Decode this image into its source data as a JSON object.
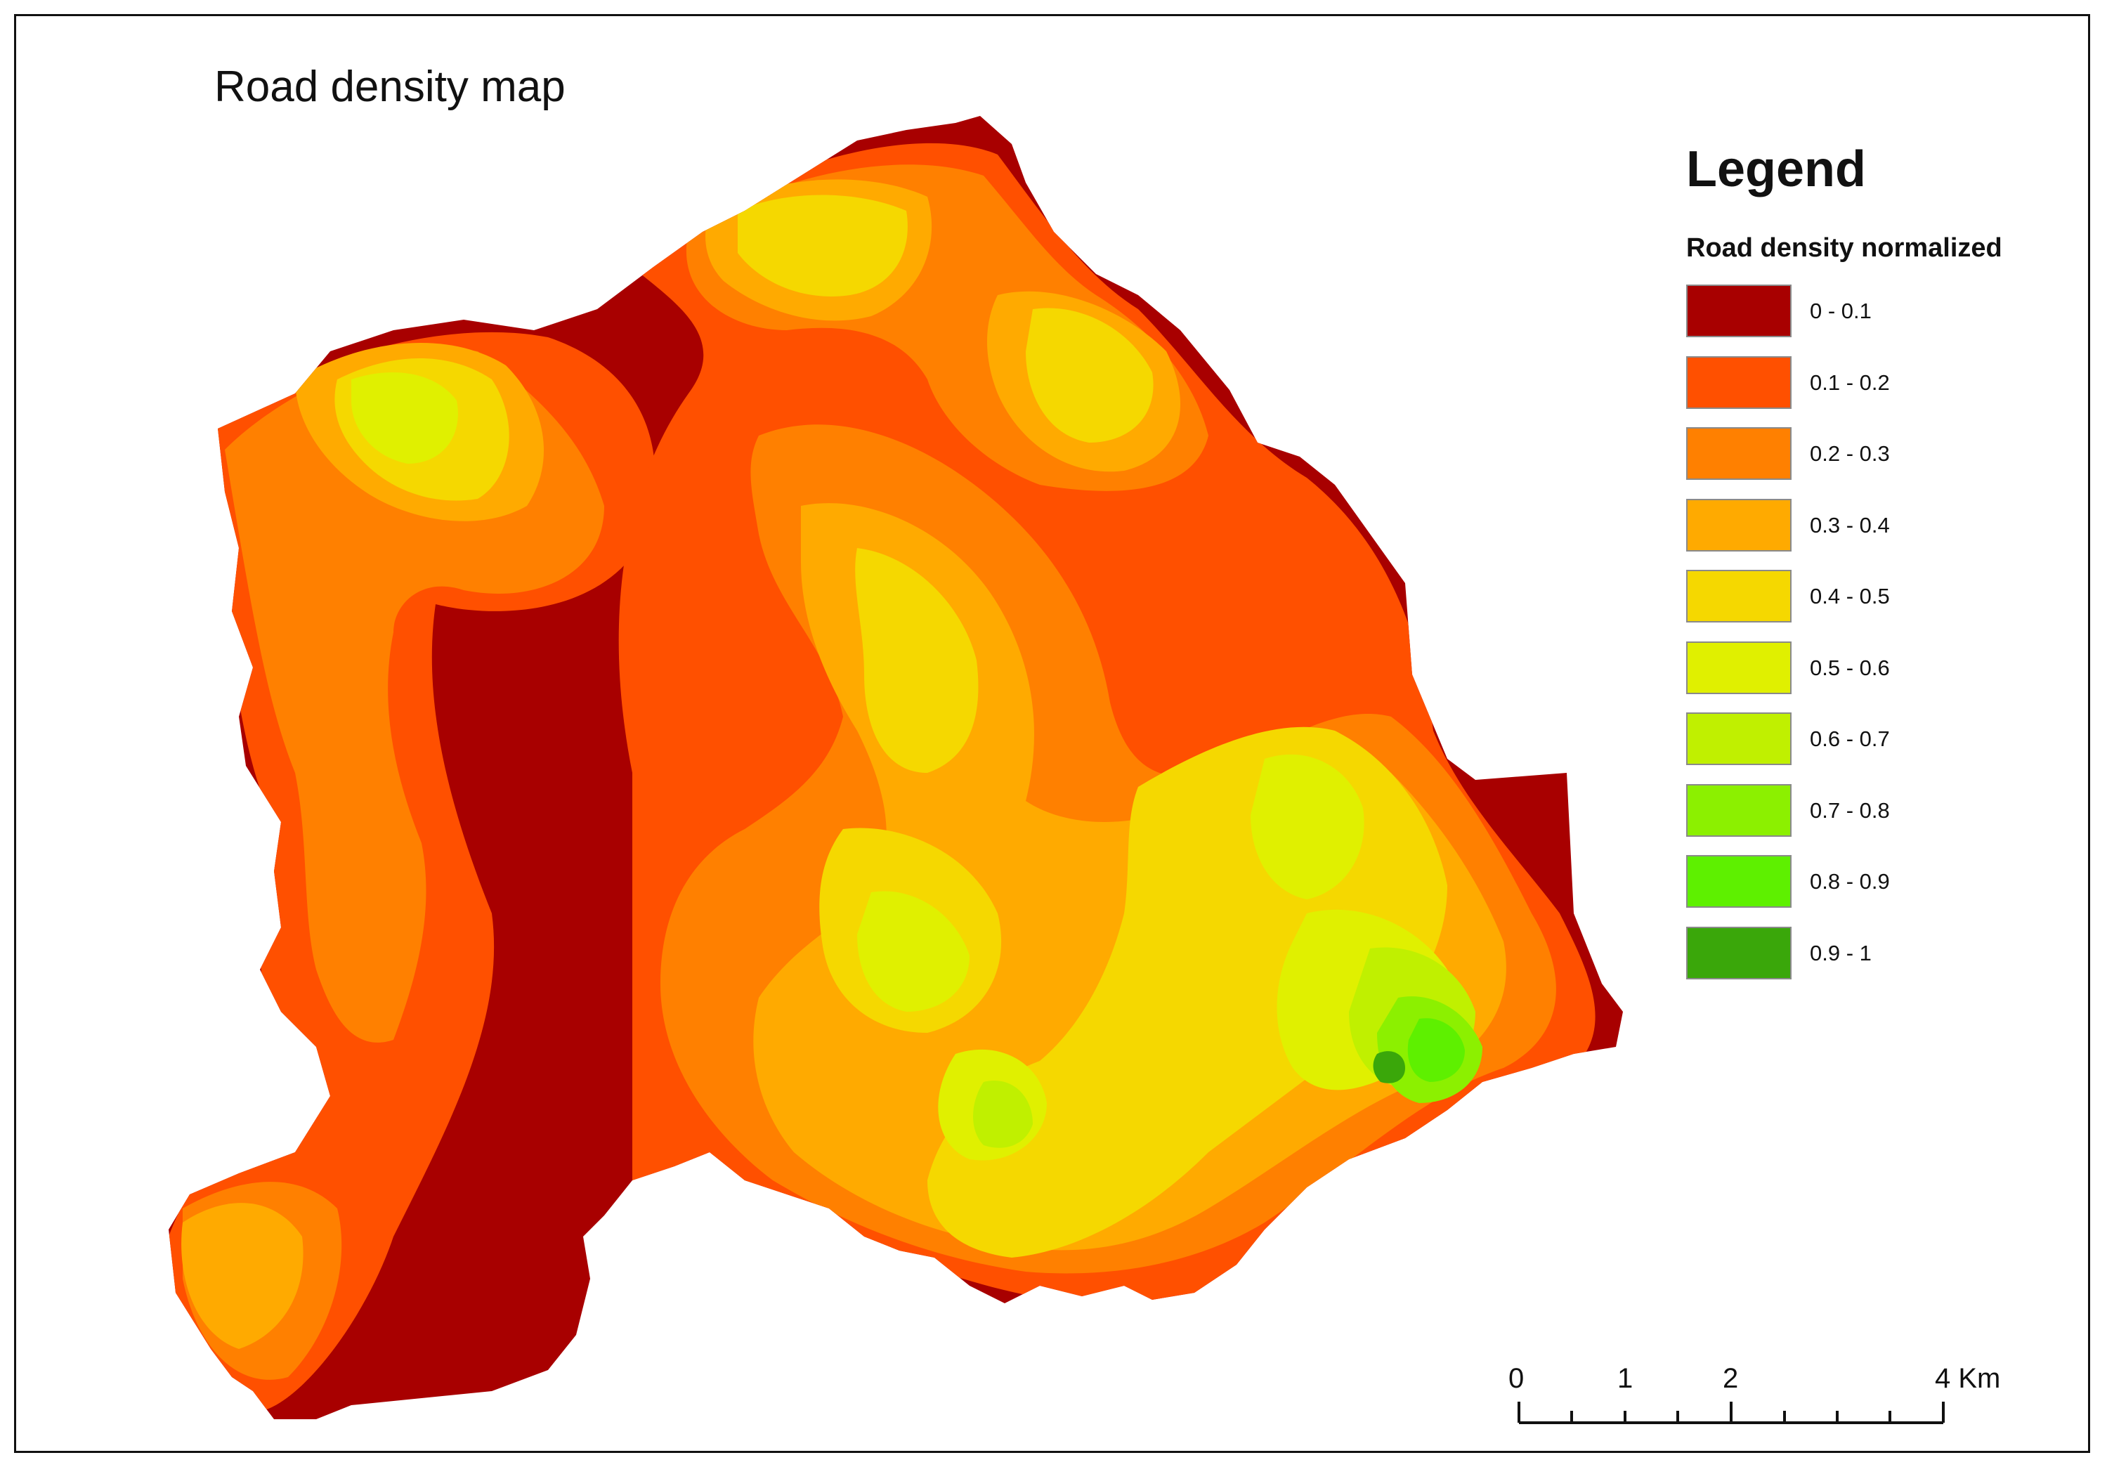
{
  "map": {
    "title": "Road density map",
    "classes": [
      {
        "label": "0 - 0.1",
        "color": "#a80000"
      },
      {
        "label": "0.1 - 0.2",
        "color": "#ff5000"
      },
      {
        "label": "0.2 - 0.3",
        "color": "#ff8000"
      },
      {
        "label": "0.3 - 0.4",
        "color": "#ffaa00"
      },
      {
        "label": "0.4 - 0.5",
        "color": "#f5d800"
      },
      {
        "label": "0.5 - 0.6",
        "color": "#e0f000"
      },
      {
        "label": "0.6 - 0.7",
        "color": "#c0f000"
      },
      {
        "label": "0.7 - 0.8",
        "color": "#8cf000"
      },
      {
        "label": "0.8 - 0.9",
        "color": "#5ef000"
      },
      {
        "label": "0.9 - 1",
        "color": "#3aa70a"
      }
    ]
  },
  "legend": {
    "title": "Legend",
    "subtitle": "Road density normalized"
  },
  "scalebar": {
    "labels": [
      "0",
      "1",
      "2",
      "4 Km"
    ]
  }
}
